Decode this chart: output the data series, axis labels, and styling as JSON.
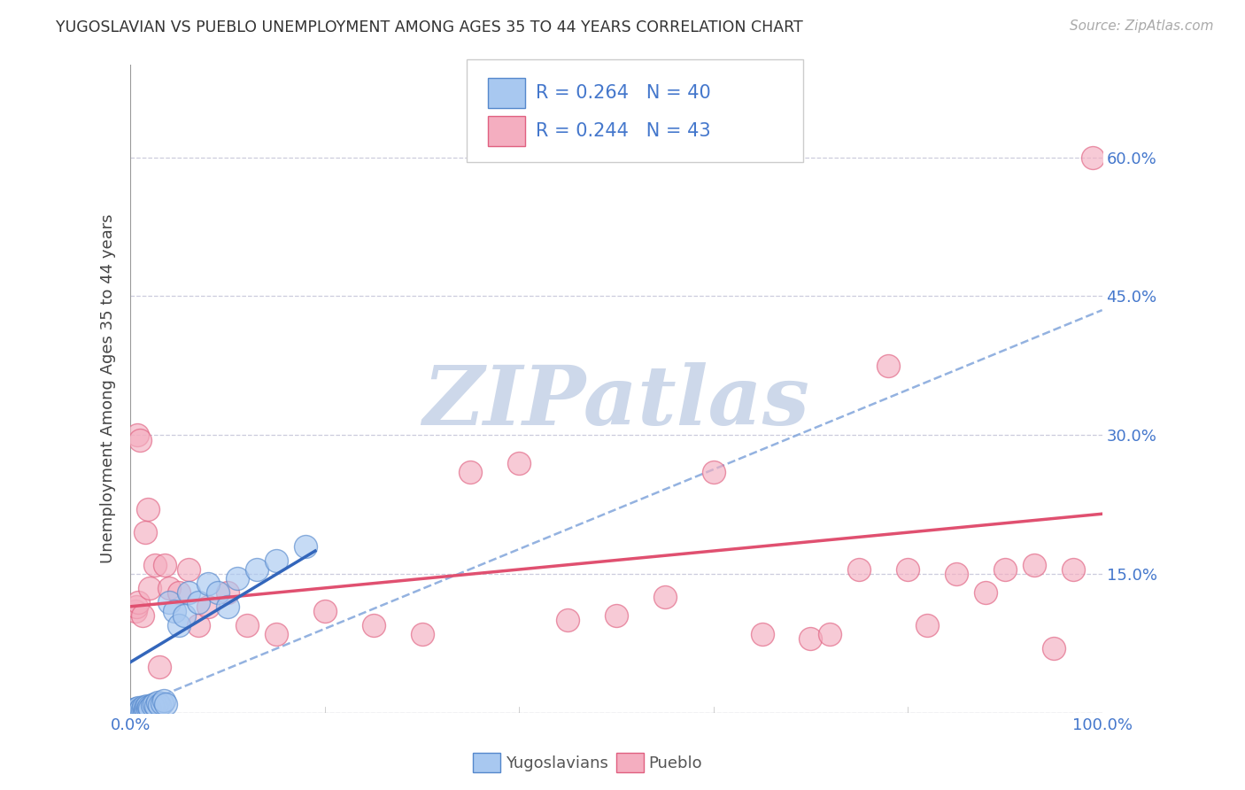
{
  "title": "YUGOSLAVIAN VS PUEBLO UNEMPLOYMENT AMONG AGES 35 TO 44 YEARS CORRELATION CHART",
  "source": "Source: ZipAtlas.com",
  "ylabel": "Unemployment Among Ages 35 to 44 years",
  "xlim": [
    0.0,
    1.0
  ],
  "ylim": [
    0.0,
    0.7
  ],
  "ytick_positions": [
    0.0,
    0.15,
    0.3,
    0.45,
    0.6
  ],
  "ytick_labels": [
    "",
    "15.0%",
    "30.0%",
    "45.0%",
    "60.0%"
  ],
  "xtick_positions": [
    0.0,
    0.2,
    0.4,
    0.6,
    0.8,
    1.0
  ],
  "xtick_labels": [
    "0.0%",
    "",
    "",
    "",
    "",
    "100.0%"
  ],
  "yug_color": "#a8c8f0",
  "pueblo_color": "#f4aec0",
  "yug_edge_color": "#5588cc",
  "pueblo_edge_color": "#e06080",
  "yug_line_color": "#3366bb",
  "pueblo_line_color": "#e05070",
  "dashed_line_color": "#88aadd",
  "label_color": "#4477cc",
  "watermark_color": "#cdd8ea",
  "R_yug": 0.264,
  "N_yug": 40,
  "R_pueblo": 0.244,
  "N_pueblo": 43,
  "yug_scatter_x": [
    0.002,
    0.003,
    0.004,
    0.005,
    0.006,
    0.007,
    0.008,
    0.009,
    0.01,
    0.011,
    0.012,
    0.013,
    0.014,
    0.015,
    0.016,
    0.017,
    0.018,
    0.019,
    0.02,
    0.022,
    0.024,
    0.026,
    0.028,
    0.03,
    0.032,
    0.034,
    0.036,
    0.04,
    0.045,
    0.05,
    0.055,
    0.06,
    0.07,
    0.08,
    0.09,
    0.1,
    0.11,
    0.13,
    0.15,
    0.18
  ],
  "yug_scatter_y": [
    0.002,
    0.004,
    0.001,
    0.003,
    0.005,
    0.002,
    0.006,
    0.001,
    0.003,
    0.005,
    0.004,
    0.007,
    0.002,
    0.006,
    0.003,
    0.008,
    0.004,
    0.007,
    0.005,
    0.009,
    0.01,
    0.008,
    0.012,
    0.009,
    0.011,
    0.013,
    0.01,
    0.12,
    0.11,
    0.095,
    0.105,
    0.13,
    0.12,
    0.14,
    0.13,
    0.115,
    0.145,
    0.155,
    0.165,
    0.18
  ],
  "pueblo_scatter_x": [
    0.005,
    0.006,
    0.007,
    0.008,
    0.01,
    0.012,
    0.015,
    0.018,
    0.02,
    0.025,
    0.03,
    0.035,
    0.04,
    0.05,
    0.06,
    0.07,
    0.08,
    0.1,
    0.12,
    0.15,
    0.2,
    0.25,
    0.3,
    0.35,
    0.4,
    0.45,
    0.5,
    0.55,
    0.6,
    0.65,
    0.7,
    0.72,
    0.75,
    0.78,
    0.8,
    0.82,
    0.85,
    0.88,
    0.9,
    0.93,
    0.95,
    0.97,
    0.99
  ],
  "pueblo_scatter_y": [
    0.11,
    0.115,
    0.3,
    0.12,
    0.295,
    0.105,
    0.195,
    0.22,
    0.135,
    0.16,
    0.05,
    0.16,
    0.135,
    0.13,
    0.155,
    0.095,
    0.115,
    0.13,
    0.095,
    0.085,
    0.11,
    0.095,
    0.085,
    0.26,
    0.27,
    0.1,
    0.105,
    0.125,
    0.26,
    0.085,
    0.08,
    0.085,
    0.155,
    0.375,
    0.155,
    0.095,
    0.15,
    0.13,
    0.155,
    0.16,
    0.07,
    0.155,
    0.6
  ],
  "yug_trend_x": [
    0.0,
    0.19
  ],
  "yug_trend_y": [
    0.055,
    0.175
  ],
  "pueblo_trend_x": [
    0.0,
    1.0
  ],
  "pueblo_trend_y": [
    0.115,
    0.215
  ],
  "dashed_trend_x": [
    0.0,
    1.0
  ],
  "dashed_trend_y": [
    0.005,
    0.435
  ]
}
